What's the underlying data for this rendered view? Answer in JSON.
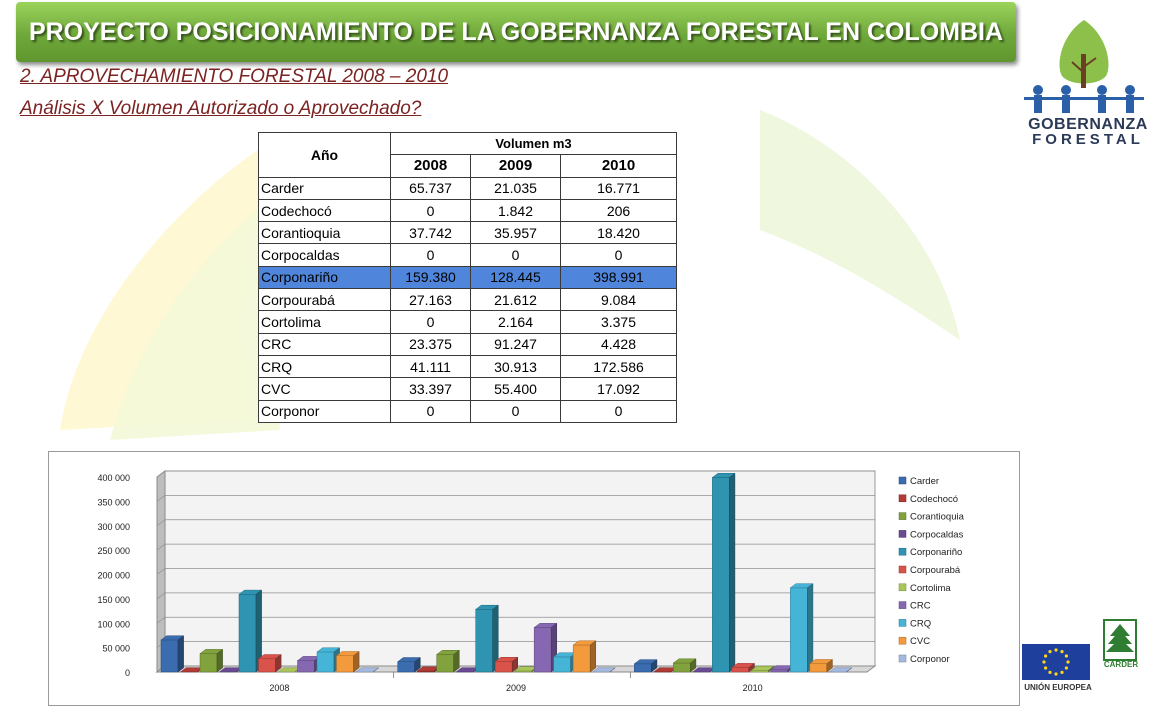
{
  "header": {
    "title": "PROYECTO POSICIONAMIENTO DE LA GOBERNANZA FORESTAL EN COLOMBIA",
    "subtitle_1": "2. APROVECHAMIENTO FORESTAL 2008 – 2010",
    "subtitle_2": "Análisis X Volumen Autorizado o Aprovechado?"
  },
  "logo": {
    "line1": "GOBERNANZA",
    "line2": "FORESTAL"
  },
  "footer_logos": {
    "eu": "UNIÓN EUROPEA",
    "carder": "CARDER"
  },
  "table": {
    "col_anio": "Año",
    "col_volumen": "Volumen m3",
    "years": [
      "2008",
      "2009",
      "2010"
    ],
    "rows": [
      {
        "name": "Carder",
        "values": [
          "65.737",
          "21.035",
          "16.771"
        ]
      },
      {
        "name": "Codechocó",
        "values": [
          "0",
          "1.842",
          "206"
        ]
      },
      {
        "name": "Corantioquia",
        "values": [
          "37.742",
          "35.957",
          "18.420"
        ]
      },
      {
        "name": "Corpocaldas",
        "values": [
          "0",
          "0",
          "0"
        ]
      },
      {
        "name": "Corponariño",
        "values": [
          "159.380",
          "128.445",
          "398.991"
        ]
      },
      {
        "name": "Corpourabá",
        "values": [
          "27.163",
          "21.612",
          "9.084"
        ]
      },
      {
        "name": "Cortolima",
        "values": [
          "0",
          "2.164",
          "3.375"
        ]
      },
      {
        "name": "CRC",
        "values": [
          "23.375",
          "91.247",
          "4.428"
        ]
      },
      {
        "name": "CRQ",
        "values": [
          "41.111",
          "30.913",
          "172.586"
        ]
      },
      {
        "name": "CVC",
        "values": [
          "33.397",
          "55.400",
          "17.092"
        ]
      },
      {
        "name": "Corponor",
        "values": [
          "0",
          "0",
          "0"
        ]
      }
    ]
  },
  "chart_data": {
    "type": "bar",
    "categories": [
      "2008",
      "2009",
      "2010"
    ],
    "ylim": [
      0,
      400000
    ],
    "yticks": [
      "0",
      "50 000",
      "100 000",
      "150 000",
      "200 000",
      "250 000",
      "300 000",
      "350 000",
      "400 000"
    ],
    "legend_position": "right",
    "grid": true,
    "series": [
      {
        "name": "Carder",
        "color": "#3b6cb0",
        "values": [
          65737,
          21035,
          16771
        ]
      },
      {
        "name": "Codechocó",
        "color": "#b23b35",
        "values": [
          0,
          1842,
          206
        ]
      },
      {
        "name": "Corantioquia",
        "color": "#82a23d",
        "values": [
          37742,
          35957,
          18420
        ]
      },
      {
        "name": "Corpocaldas",
        "color": "#6a4a93",
        "values": [
          0,
          0,
          0
        ]
      },
      {
        "name": "Corponariño",
        "color": "#2f94b1",
        "values": [
          159380,
          128445,
          398991
        ]
      },
      {
        "name": "Corpourabá",
        "color": "#d9534b",
        "values": [
          27163,
          21612,
          9084
        ]
      },
      {
        "name": "Cortolima",
        "color": "#a8c65a",
        "values": [
          0,
          2164,
          3375
        ]
      },
      {
        "name": "CRC",
        "color": "#8667b2",
        "values": [
          23375,
          91247,
          4428
        ]
      },
      {
        "name": "CRQ",
        "color": "#46b4d6",
        "values": [
          41111,
          30913,
          172586
        ]
      },
      {
        "name": "CVC",
        "color": "#f39a3c",
        "values": [
          33397,
          55400,
          17092
        ]
      },
      {
        "name": "Corponor",
        "color": "#a5b9e0",
        "values": [
          0,
          0,
          0
        ]
      }
    ]
  }
}
